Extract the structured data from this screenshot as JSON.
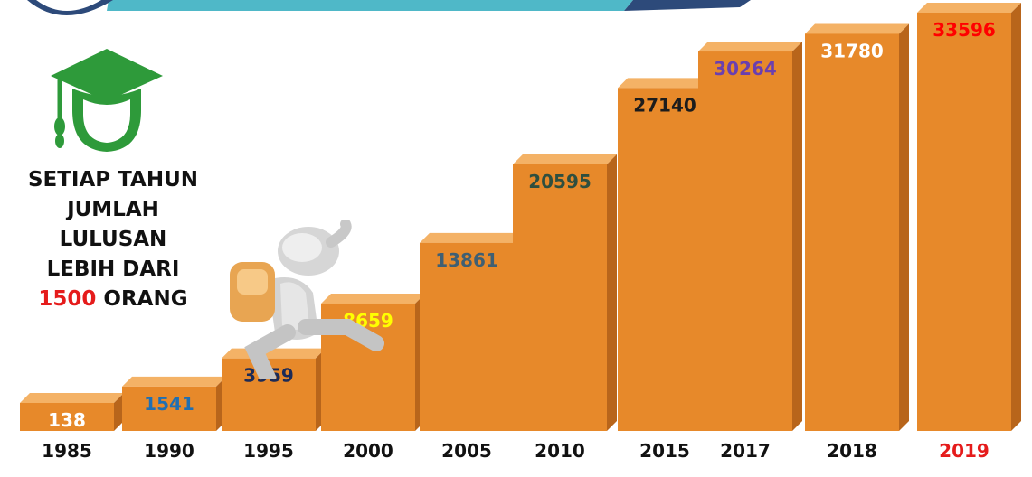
{
  "headline": {
    "lines": [
      "SETIAP TAHUN",
      "JUMLAH",
      "LULUSAN",
      "LEBIH DARI"
    ],
    "highlight_number": "1500",
    "last_word": "ORANG",
    "highlight_color": "#e51b1b"
  },
  "icons": {
    "graduate": "graduate-cap-head-icon",
    "figure": "climbing-figure-with-backpack-icon"
  },
  "colors": {
    "bar_front": "#e7892a",
    "bar_top": "#f4b266",
    "bar_side": "#b8651b",
    "graduate_icon": "#2e9a3a",
    "banner": "#4fb8c8"
  },
  "chart_data": {
    "type": "bar",
    "categories": [
      "1985",
      "1990",
      "1995",
      "2000",
      "2005",
      "2010",
      "2015",
      "2017",
      "2018",
      "2019"
    ],
    "values": [
      138,
      1541,
      3959,
      8659,
      13861,
      20595,
      27140,
      30264,
      31780,
      33596
    ],
    "value_label_colors": [
      "#ffffff",
      "#1f6fb3",
      "#1c2b57",
      "#ffff00",
      "#3f5f73",
      "#2f4f3f",
      "#1c1c1c",
      "#6b3fb0",
      "#ffffff",
      "#ff0000"
    ],
    "category_label_colors": [
      "#111111",
      "#111111",
      "#111111",
      "#111111",
      "#111111",
      "#111111",
      "#111111",
      "#111111",
      "#111111",
      "#e51b1b"
    ],
    "title": "",
    "xlabel": "",
    "ylabel": "",
    "ylim": [
      0,
      34000
    ],
    "grid": false,
    "legend": "none"
  }
}
